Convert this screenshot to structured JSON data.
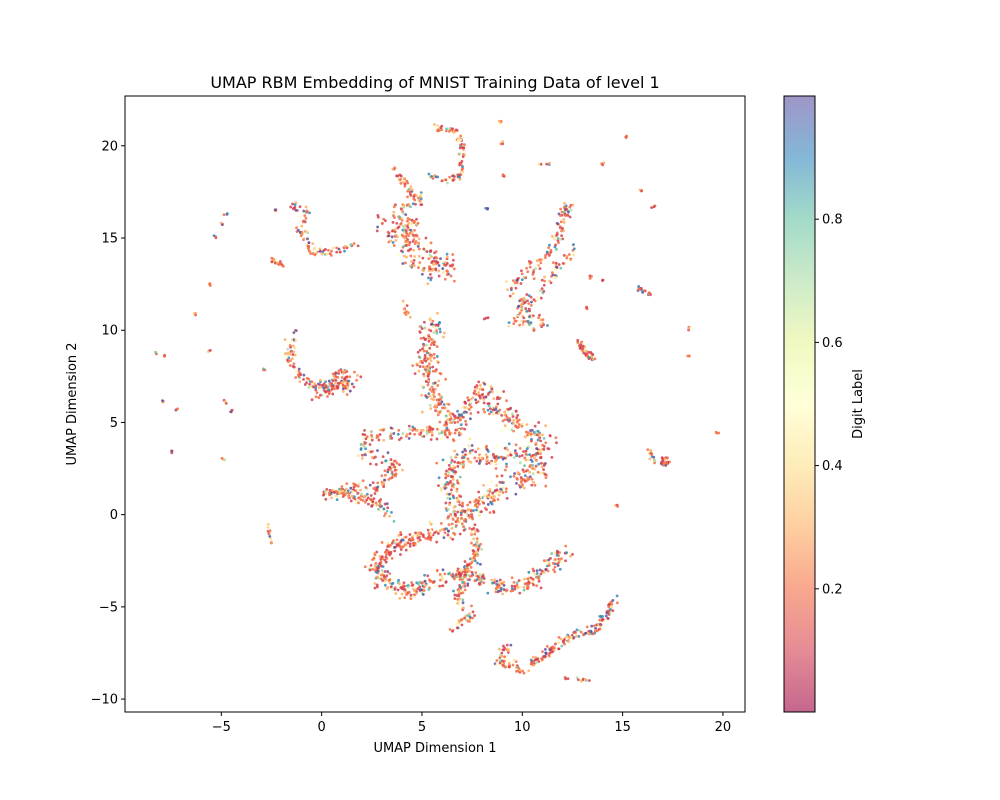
{
  "chart_data": {
    "type": "scatter",
    "title": "UMAP RBM Embedding of MNIST Training Data of level 1",
    "xlabel": "UMAP Dimension 1",
    "ylabel": "UMAP Dimension 2",
    "xlim": [
      -9.8,
      21.1
    ],
    "ylim": [
      -10.7,
      22.7
    ],
    "xticks": [
      -5,
      0,
      5,
      10,
      15,
      20
    ],
    "yticks": [
      -10,
      -5,
      0,
      5,
      10,
      15,
      20
    ],
    "grid": false,
    "legend": "none",
    "colorbar": {
      "label": "Digit Label",
      "range": [
        0,
        1
      ],
      "ticks": [
        0.2,
        0.4,
        0.6,
        0.8
      ],
      "colormap": "Spectral",
      "alpha": 0.6
    },
    "marker_size": "small",
    "clusters": [
      {
        "path": [
          [
            5.5,
            10.5
          ],
          [
            5.2,
            8.0
          ],
          [
            5.8,
            6.0
          ],
          [
            6.5,
            4.5
          ],
          [
            8.0,
            6.8
          ],
          [
            9.5,
            5.0
          ],
          [
            11.0,
            4.0
          ],
          [
            10.5,
            2.0
          ],
          [
            9.0,
            1.5
          ],
          [
            8.0,
            0.5
          ],
          [
            6.8,
            -0.5
          ],
          [
            6.3,
            2.0
          ],
          [
            7.2,
            3.5
          ],
          [
            8.5,
            3.0
          ],
          [
            10.0,
            3.5
          ]
        ],
        "spread": 0.6,
        "count": 850
      },
      {
        "path": [
          [
            6.2,
            4.2
          ],
          [
            5.0,
            4.6
          ],
          [
            3.5,
            4.4
          ],
          [
            2.0,
            4.2
          ],
          [
            2.2,
            3.2
          ],
          [
            3.0,
            3.0
          ],
          [
            3.8,
            2.5
          ],
          [
            3.0,
            1.6
          ],
          [
            1.5,
            1.5
          ],
          [
            0.2,
            1.2
          ],
          [
            1.5,
            1.1
          ],
          [
            2.8,
            0.6
          ],
          [
            3.5,
            -0.2
          ]
        ],
        "spread": 0.35,
        "count": 300
      },
      {
        "path": [
          [
            6.5,
            -0.9
          ],
          [
            5.0,
            -1.2
          ],
          [
            3.5,
            -1.8
          ],
          [
            2.6,
            -2.8
          ],
          [
            3.2,
            -3.8
          ],
          [
            4.5,
            -4.2
          ],
          [
            5.5,
            -3.6
          ],
          [
            6.8,
            -3.2
          ],
          [
            8.0,
            -3.6
          ],
          [
            9.2,
            -4.0
          ],
          [
            10.5,
            -3.6
          ],
          [
            11.5,
            -2.6
          ],
          [
            12.3,
            -2.0
          ]
        ],
        "spread": 0.45,
        "count": 500
      },
      {
        "path": [
          [
            7.5,
            -0.8
          ],
          [
            7.8,
            -2.0
          ],
          [
            7.2,
            -3.0
          ],
          [
            6.8,
            -4.5
          ],
          [
            7.5,
            -5.5
          ],
          [
            6.5,
            -6.2
          ]
        ],
        "spread": 0.3,
        "count": 140
      },
      {
        "path": [
          [
            -1.5,
            9.8
          ],
          [
            -1.6,
            8.2
          ],
          [
            -0.8,
            7.2
          ],
          [
            0.5,
            7.0
          ],
          [
            1.5,
            6.8
          ],
          [
            1.0,
            7.8
          ],
          [
            -0.2,
            6.4
          ],
          [
            1.7,
            7.6
          ]
        ],
        "spread": 0.3,
        "count": 180
      },
      {
        "path": [
          [
            2.8,
            15.8
          ],
          [
            3.5,
            15.0
          ],
          [
            4.5,
            16.0
          ],
          [
            4.2,
            14.0
          ],
          [
            5.2,
            13.0
          ],
          [
            6.0,
            14.0
          ],
          [
            6.5,
            13.0
          ],
          [
            3.5,
            16.2
          ],
          [
            4.8,
            17.5
          ]
        ],
        "spread": 0.45,
        "count": 230
      },
      {
        "path": [
          [
            -1.5,
            16.8
          ],
          [
            -0.8,
            16.5
          ],
          [
            -1.0,
            15.5
          ],
          [
            -0.5,
            14.3
          ],
          [
            0.5,
            14.2
          ],
          [
            1.8,
            14.7
          ]
        ],
        "spread": 0.25,
        "count": 90
      },
      {
        "path": [
          [
            -2.5,
            13.8
          ],
          [
            -1.8,
            13.5
          ]
        ],
        "spread": 0.15,
        "count": 20
      },
      {
        "path": [
          [
            5.7,
            21.0
          ],
          [
            6.8,
            20.8
          ],
          [
            7.0,
            19.5
          ],
          [
            7.0,
            18.5
          ],
          [
            6.2,
            18.1
          ],
          [
            5.4,
            18.4
          ]
        ],
        "spread": 0.18,
        "count": 100
      },
      {
        "path": [
          [
            3.8,
            18.5
          ],
          [
            4.5,
            17.5
          ],
          [
            5.0,
            16.8
          ]
        ],
        "spread": 0.2,
        "count": 40
      },
      {
        "path": [
          [
            12.2,
            16.8
          ],
          [
            11.8,
            15.0
          ],
          [
            11.0,
            14.0
          ],
          [
            10.2,
            13.0
          ],
          [
            9.5,
            12.5
          ],
          [
            10.3,
            11.0
          ],
          [
            11.0,
            10.3
          ],
          [
            9.5,
            10.5
          ],
          [
            12.6,
            14.5
          ]
        ],
        "spread": 0.35,
        "count": 220
      },
      {
        "path": [
          [
            12.8,
            9.3
          ],
          [
            13.5,
            8.4
          ]
        ],
        "spread": 0.2,
        "count": 40
      },
      {
        "path": [
          [
            9.2,
            -7.2
          ],
          [
            8.8,
            -8.0
          ],
          [
            10.0,
            -8.4
          ],
          [
            11.2,
            -7.6
          ],
          [
            12.3,
            -6.6
          ],
          [
            13.5,
            -6.3
          ],
          [
            14.2,
            -5.5
          ],
          [
            14.6,
            -4.6
          ]
        ],
        "spread": 0.25,
        "count": 210
      },
      {
        "path": [
          [
            16.3,
            3.6
          ],
          [
            16.6,
            2.8
          ],
          [
            17.3,
            2.8
          ],
          [
            16.9,
            3.3
          ]
        ],
        "spread": 0.15,
        "count": 40
      },
      {
        "path": [
          [
            15.8,
            12.3
          ],
          [
            16.4,
            11.9
          ]
        ],
        "spread": 0.1,
        "count": 18
      },
      {
        "path": [
          [
            -2.7,
            -0.5
          ],
          [
            -2.5,
            -1.6
          ]
        ],
        "spread": 0.08,
        "count": 12
      },
      {
        "path": [
          [
            4.0,
            11.5
          ],
          [
            4.3,
            10.8
          ]
        ],
        "spread": 0.12,
        "count": 12
      },
      {
        "path": [
          [
            12.0,
            -8.8
          ],
          [
            13.4,
            -9.0
          ]
        ],
        "spread": 0.1,
        "count": 12
      }
    ],
    "isolated_points": [
      [
        -8.2,
        8.8
      ],
      [
        -7.8,
        8.6
      ],
      [
        -7.9,
        6.2
      ],
      [
        -7.5,
        3.4
      ],
      [
        -7.3,
        5.7
      ],
      [
        -6.3,
        10.9
      ],
      [
        -5.6,
        12.5
      ],
      [
        -5.6,
        8.9
      ],
      [
        -5.3,
        15.1
      ],
      [
        -5.0,
        15.8
      ],
      [
        -4.8,
        16.3
      ],
      [
        -4.9,
        3.0
      ],
      [
        -4.8,
        6.1
      ],
      [
        -4.5,
        5.6
      ],
      [
        -2.9,
        7.9
      ],
      [
        -2.3,
        16.5
      ],
      [
        3.6,
        18.8
      ],
      [
        8.2,
        16.6
      ],
      [
        9.1,
        18.4
      ],
      [
        8.9,
        21.3
      ],
      [
        9.0,
        20.1
      ],
      [
        10.9,
        19.0
      ],
      [
        11.3,
        19.0
      ],
      [
        14.0,
        19.0
      ],
      [
        15.2,
        20.5
      ],
      [
        15.9,
        17.6
      ],
      [
        16.5,
        16.7
      ],
      [
        13.2,
        11.2
      ],
      [
        13.4,
        12.9
      ],
      [
        14.0,
        12.7
      ],
      [
        18.3,
        10.1
      ],
      [
        18.3,
        8.6
      ],
      [
        19.7,
        4.4
      ],
      [
        14.7,
        0.5
      ],
      [
        8.2,
        10.6
      ]
    ],
    "seed": 7
  }
}
